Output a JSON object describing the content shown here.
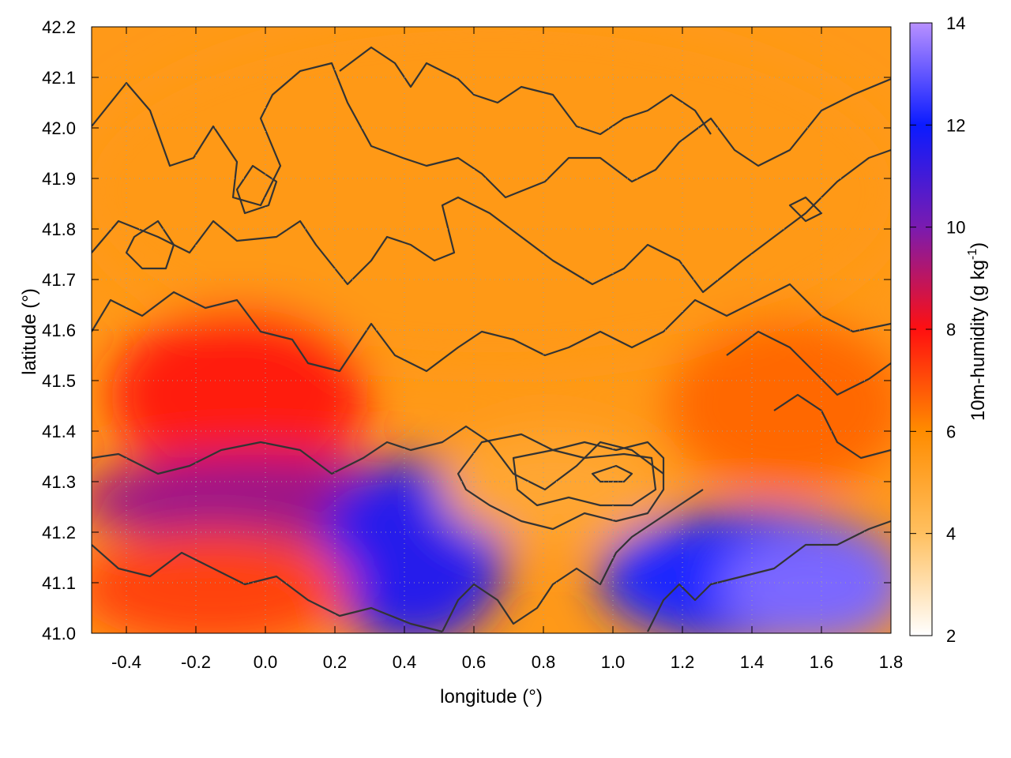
{
  "chart_data": {
    "type": "heatmap",
    "title": "",
    "xlabel": "longitude (°)",
    "ylabel": "latitude (°)",
    "colorbar_label_main": "10m-humidity (g kg",
    "colorbar_label_sup": "-1",
    "colorbar_label_tail": ")",
    "xlim": [
      -0.5,
      1.8
    ],
    "ylim": [
      41.0,
      42.2
    ],
    "x_ticks": [
      -0.4,
      -0.2,
      0.0,
      0.2,
      0.4,
      0.6,
      0.8,
      1.0,
      1.2,
      1.4,
      1.6,
      1.8
    ],
    "x_tick_labels": [
      "-0.4",
      "-0.2",
      "0.0",
      "0.2",
      "0.4",
      "0.6",
      "0.8",
      "1.0",
      "1.2",
      "1.4",
      "1.6",
      "1.8"
    ],
    "y_ticks": [
      41.0,
      41.1,
      41.2,
      41.3,
      41.4,
      41.5,
      41.6,
      41.7,
      41.8,
      41.9,
      42.0,
      42.1,
      42.2
    ],
    "y_tick_labels": [
      "41.0",
      "41.1",
      "41.2",
      "41.3",
      "41.4",
      "41.5",
      "41.6",
      "41.7",
      "41.8",
      "41.9",
      "42.0",
      "42.1",
      "42.2"
    ],
    "colorbar_range": [
      2,
      14
    ],
    "colorbar_ticks": [
      2,
      4,
      6,
      8,
      10,
      12,
      14
    ],
    "colorbar_tick_labels": [
      "2",
      "4",
      "6",
      "8",
      "10",
      "12",
      "14"
    ],
    "colorbar_colors": [
      {
        "value": 2,
        "color": "#ffffff"
      },
      {
        "value": 4,
        "color": "#ffc060"
      },
      {
        "value": 6,
        "color": "#ff8c00"
      },
      {
        "value": 8,
        "color": "#ff1010"
      },
      {
        "value": 10,
        "color": "#7a1bb0"
      },
      {
        "value": 12,
        "color": "#0b1bff"
      },
      {
        "value": 14,
        "color": "#b890ff"
      }
    ],
    "grid": true,
    "field_regions": [
      {
        "lon": [
          -0.5,
          1.8
        ],
        "lat": [
          41.55,
          42.2
        ],
        "humidity": 5.5
      },
      {
        "lon": [
          -0.4,
          0.25
        ],
        "lat": [
          41.32,
          41.62
        ],
        "humidity": 7.8
      },
      {
        "lon": [
          -0.5,
          0.45
        ],
        "lat": [
          41.2,
          41.33
        ],
        "humidity": 9.5
      },
      {
        "lon": [
          0.2,
          0.65
        ],
        "lat": [
          41.0,
          41.32
        ],
        "humidity": 11.5
      },
      {
        "lon": [
          0.55,
          1.1
        ],
        "lat": [
          41.2,
          41.38
        ],
        "humidity": 5.0
      },
      {
        "lon": [
          1.0,
          1.8
        ],
        "lat": [
          41.0,
          41.22
        ],
        "humidity": 12.2
      },
      {
        "lon": [
          1.35,
          1.8
        ],
        "lat": [
          41.0,
          41.18
        ],
        "humidity": 13.3
      },
      {
        "lon": [
          -0.5,
          0.2
        ],
        "lat": [
          41.0,
          41.18
        ],
        "humidity": 7.2
      },
      {
        "lon": [
          1.2,
          1.8
        ],
        "lat": [
          41.3,
          41.6
        ],
        "humidity": 6.6
      }
    ]
  }
}
